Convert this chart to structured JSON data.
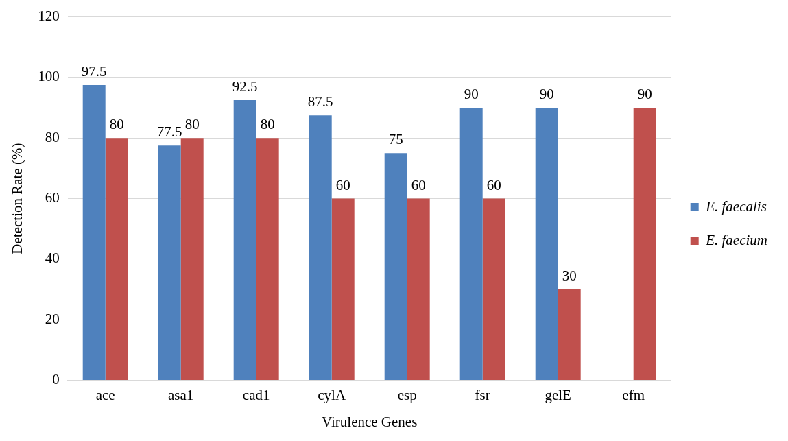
{
  "chart_data": {
    "type": "bar",
    "xlabel": "Virulence Genes",
    "ylabel": "Detection Rate (%)",
    "categories": [
      "ace",
      "asa1",
      "cad1",
      "cylA",
      "esp",
      "fsr",
      "gelE",
      "efm"
    ],
    "series": [
      {
        "name": "E. faecalis",
        "color": "#4f81bd",
        "values": [
          97.5,
          77.5,
          92.5,
          87.5,
          75,
          90,
          90,
          null
        ]
      },
      {
        "name": "E. faecium",
        "color": "#c0504d",
        "values": [
          80,
          80,
          80,
          60,
          60,
          60,
          30,
          90
        ]
      }
    ],
    "ylim": [
      0,
      120
    ],
    "yticks": [
      0,
      20,
      40,
      60,
      80,
      100,
      120
    ],
    "grid": "y",
    "legend": "right",
    "data_labels": true
  }
}
